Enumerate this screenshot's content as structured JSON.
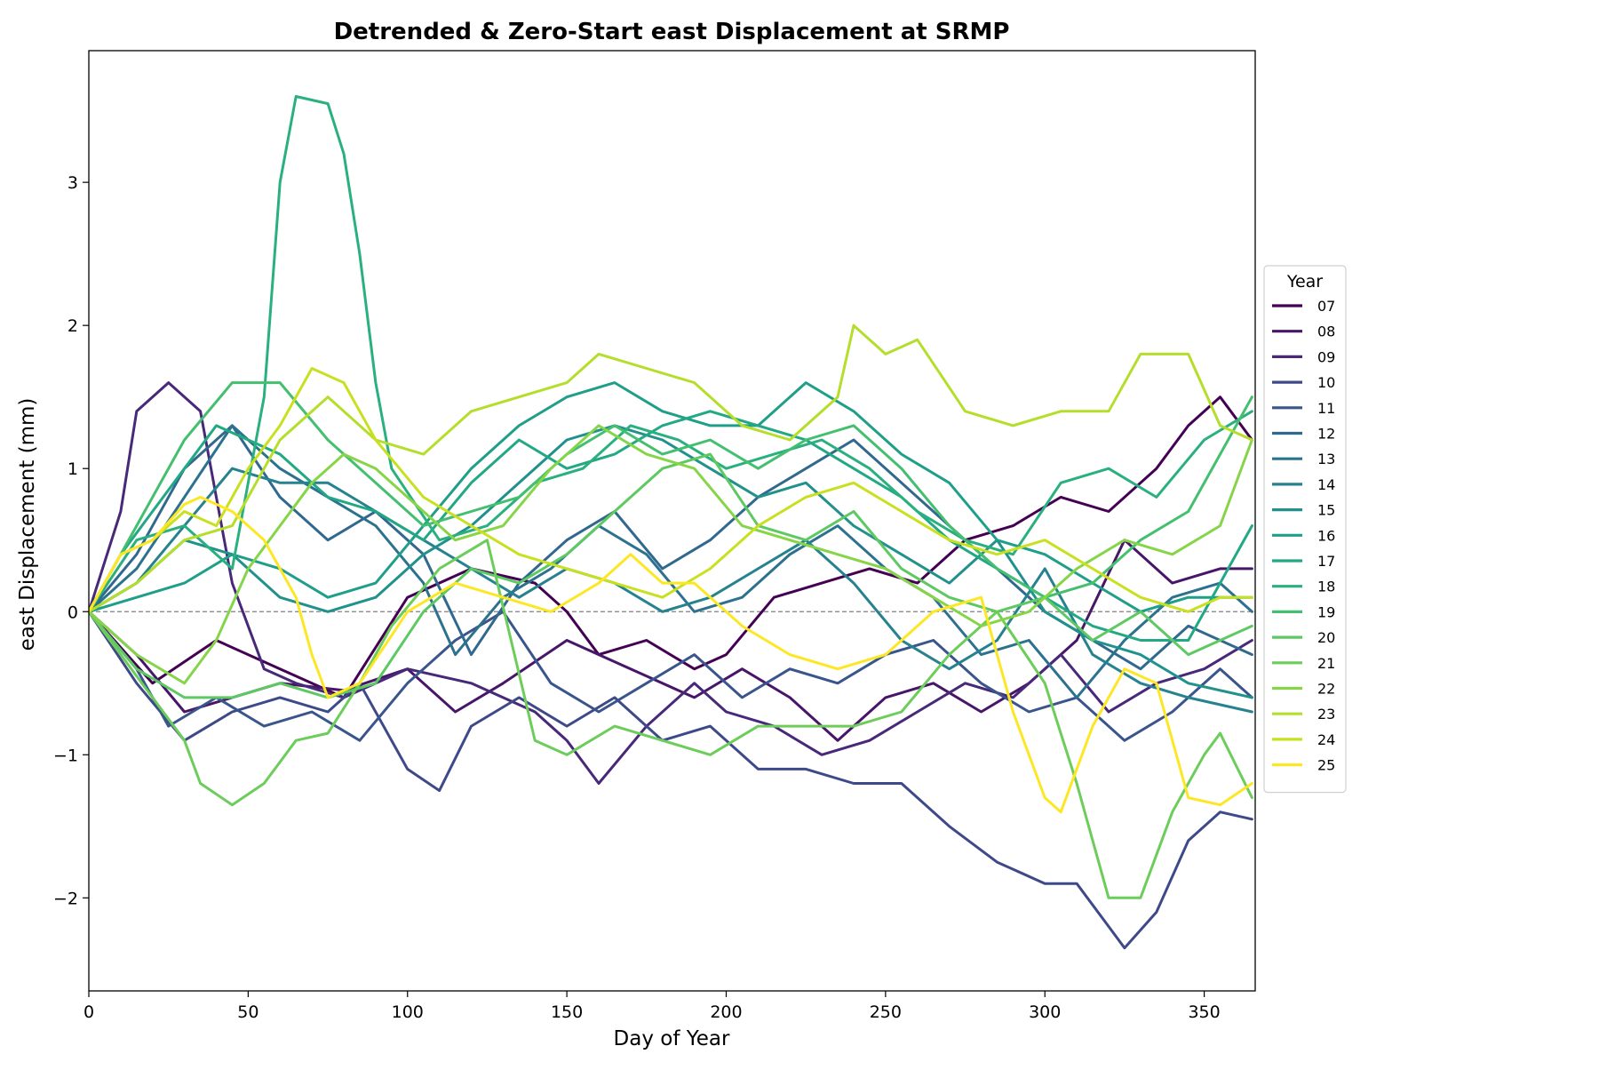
{
  "chart_data": {
    "type": "line",
    "title": "Detrended & Zero-Start east Displacement at SRMP",
    "xlabel": "Day of Year",
    "ylabel": "east Displacement (mm)",
    "xlim": [
      0,
      366
    ],
    "ylim": [
      -2.65,
      3.92
    ],
    "xticks": [
      0,
      50,
      100,
      150,
      200,
      250,
      300,
      350
    ],
    "yticks": [
      -2,
      -1,
      0,
      1,
      2,
      3
    ],
    "ytick_labels": [
      "−2",
      "−1",
      "0",
      "1",
      "2",
      "3"
    ],
    "zero_line": true,
    "grid": false,
    "legend": {
      "title": "Year",
      "placement": "center-right outside"
    },
    "series": [
      {
        "name": "07",
        "color": "#440154",
        "x": [
          0,
          20,
          40,
          60,
          80,
          100,
          120,
          140,
          150,
          160,
          175,
          190,
          200,
          215,
          230,
          245,
          260,
          275,
          290,
          305,
          320,
          335,
          345,
          355,
          365
        ],
        "y": [
          0,
          -0.5,
          -0.2,
          -0.4,
          -0.6,
          0.1,
          0.3,
          0.2,
          0.0,
          -0.3,
          -0.2,
          -0.4,
          -0.3,
          0.1,
          0.2,
          0.3,
          0.2,
          0.5,
          0.6,
          0.8,
          0.7,
          1.0,
          1.3,
          1.5,
          1.2
        ]
      },
      {
        "name": "08",
        "color": "#481668",
        "x": [
          0,
          15,
          30,
          45,
          60,
          80,
          100,
          115,
          130,
          150,
          170,
          190,
          205,
          220,
          235,
          250,
          265,
          280,
          295,
          310,
          325,
          340,
          355,
          365
        ],
        "y": [
          0,
          -0.3,
          -0.7,
          -0.6,
          -0.5,
          -0.55,
          -0.4,
          -0.7,
          -0.5,
          -0.2,
          -0.4,
          -0.6,
          -0.4,
          -0.6,
          -0.9,
          -0.6,
          -0.5,
          -0.7,
          -0.5,
          -0.2,
          0.5,
          0.2,
          0.3,
          0.3
        ]
      },
      {
        "name": "09",
        "color": "#482878",
        "x": [
          0,
          10,
          15,
          25,
          35,
          45,
          55,
          65,
          80,
          100,
          120,
          140,
          150,
          160,
          175,
          190,
          200,
          215,
          230,
          245,
          260,
          275,
          290,
          305,
          320,
          335,
          350,
          365
        ],
        "y": [
          0,
          0.7,
          1.4,
          1.6,
          1.4,
          0.2,
          -0.4,
          -0.5,
          -0.6,
          -0.4,
          -0.5,
          -0.7,
          -0.9,
          -1.2,
          -0.8,
          -0.5,
          -0.7,
          -0.8,
          -1.0,
          -0.9,
          -0.7,
          -0.5,
          -0.6,
          -0.3,
          -0.7,
          -0.5,
          -0.4,
          -0.2
        ]
      },
      {
        "name": "10",
        "color": "#3e4989",
        "x": [
          0,
          15,
          30,
          45,
          60,
          75,
          85,
          100,
          110,
          120,
          135,
          150,
          165,
          180,
          195,
          210,
          225,
          240,
          255,
          270,
          285,
          300,
          310,
          320,
          325,
          335,
          345,
          355,
          365
        ],
        "y": [
          0,
          -0.5,
          -0.9,
          -0.7,
          -0.6,
          -0.7,
          -0.5,
          -1.1,
          -1.25,
          -0.8,
          -0.6,
          -0.8,
          -0.6,
          -0.9,
          -0.8,
          -1.1,
          -1.1,
          -1.2,
          -1.2,
          -1.5,
          -1.75,
          -1.9,
          -1.9,
          -2.2,
          -2.35,
          -2.1,
          -1.6,
          -1.4,
          -1.45
        ]
      },
      {
        "name": "11",
        "color": "#3a548c",
        "x": [
          0,
          15,
          25,
          40,
          55,
          70,
          85,
          100,
          115,
          130,
          145,
          160,
          175,
          190,
          205,
          220,
          235,
          250,
          265,
          280,
          295,
          310,
          325,
          340,
          355,
          365
        ],
        "y": [
          0,
          -0.4,
          -0.8,
          -0.6,
          -0.8,
          -0.7,
          -0.9,
          -0.5,
          -0.2,
          0.0,
          -0.5,
          -0.7,
          -0.5,
          -0.3,
          -0.6,
          -0.4,
          -0.5,
          -0.3,
          -0.2,
          -0.5,
          -0.7,
          -0.6,
          -0.9,
          -0.7,
          -0.4,
          -0.6
        ]
      },
      {
        "name": "12",
        "color": "#31688e",
        "x": [
          0,
          15,
          30,
          45,
          60,
          75,
          90,
          105,
          120,
          135,
          150,
          165,
          180,
          195,
          210,
          225,
          240,
          255,
          270,
          285,
          300,
          315,
          330,
          345,
          365
        ],
        "y": [
          0,
          0.4,
          1.0,
          1.3,
          0.8,
          0.5,
          0.7,
          0.4,
          -0.3,
          0.2,
          0.5,
          0.7,
          0.3,
          0.5,
          0.8,
          1.0,
          1.2,
          0.9,
          0.6,
          0.3,
          0.0,
          -0.2,
          -0.4,
          -0.1,
          -0.3
        ]
      },
      {
        "name": "13",
        "color": "#2c728e",
        "x": [
          0,
          15,
          30,
          45,
          60,
          75,
          90,
          105,
          115,
          130,
          145,
          160,
          175,
          190,
          205,
          220,
          235,
          250,
          265,
          280,
          295,
          310,
          325,
          340,
          355,
          365
        ],
        "y": [
          0,
          0.3,
          0.8,
          1.3,
          1.0,
          0.8,
          0.6,
          0.2,
          -0.3,
          0.1,
          0.3,
          0.6,
          0.4,
          0.0,
          0.1,
          0.4,
          0.6,
          0.3,
          0.1,
          -0.3,
          -0.2,
          -0.6,
          -0.2,
          0.1,
          0.2,
          0.0
        ]
      },
      {
        "name": "14",
        "color": "#26828e",
        "x": [
          0,
          15,
          30,
          45,
          60,
          75,
          90,
          105,
          120,
          135,
          150,
          165,
          180,
          195,
          210,
          225,
          240,
          255,
          270,
          285,
          300,
          315,
          330,
          345,
          365
        ],
        "y": [
          0,
          0.2,
          0.6,
          1.0,
          0.9,
          0.9,
          0.7,
          0.5,
          0.3,
          0.1,
          0.3,
          0.2,
          0.0,
          0.1,
          0.3,
          0.5,
          0.2,
          -0.2,
          -0.4,
          -0.2,
          0.3,
          -0.3,
          -0.5,
          -0.6,
          -0.7
        ]
      },
      {
        "name": "15",
        "color": "#21918c",
        "x": [
          0,
          15,
          30,
          45,
          60,
          75,
          90,
          105,
          120,
          135,
          150,
          165,
          180,
          195,
          210,
          225,
          240,
          255,
          270,
          285,
          300,
          315,
          330,
          345,
          365
        ],
        "y": [
          0,
          0.2,
          0.5,
          0.4,
          0.1,
          0.0,
          0.1,
          0.4,
          0.6,
          0.9,
          1.2,
          1.3,
          1.2,
          1.0,
          0.8,
          0.9,
          0.6,
          0.4,
          0.2,
          0.5,
          0.0,
          -0.2,
          -0.3,
          -0.5,
          -0.6
        ]
      },
      {
        "name": "16",
        "color": "#1f9e89",
        "x": [
          0,
          15,
          30,
          45,
          60,
          75,
          90,
          105,
          120,
          135,
          150,
          165,
          180,
          195,
          210,
          225,
          240,
          255,
          270,
          285,
          300,
          315,
          330,
          345,
          365
        ],
        "y": [
          0,
          0.1,
          0.2,
          0.4,
          0.3,
          0.1,
          0.2,
          0.6,
          1.0,
          1.3,
          1.5,
          1.6,
          1.4,
          1.3,
          1.3,
          1.6,
          1.4,
          1.1,
          0.9,
          0.5,
          0.4,
          0.2,
          0.0,
          0.1,
          0.1
        ]
      },
      {
        "name": "17",
        "color": "#22a884",
        "x": [
          0,
          10,
          20,
          30,
          40,
          50,
          60,
          75,
          90,
          105,
          120,
          135,
          150,
          165,
          180,
          195,
          210,
          225,
          240,
          255,
          270,
          285,
          300,
          315,
          330,
          345,
          365
        ],
        "y": [
          0,
          0.4,
          0.7,
          1.0,
          1.3,
          1.2,
          1.1,
          0.8,
          0.7,
          0.5,
          0.9,
          1.2,
          1.0,
          1.1,
          1.3,
          1.4,
          1.3,
          1.2,
          1.0,
          0.8,
          0.5,
          0.3,
          0.1,
          -0.1,
          -0.2,
          -0.2,
          0.6
        ]
      },
      {
        "name": "18",
        "color": "#2ab07f",
        "x": [
          0,
          15,
          30,
          45,
          55,
          60,
          65,
          75,
          80,
          85,
          90,
          95,
          110,
          125,
          140,
          155,
          170,
          185,
          200,
          215,
          230,
          245,
          260,
          275,
          290,
          305,
          320,
          335,
          350,
          365
        ],
        "y": [
          0,
          0.5,
          0.6,
          0.3,
          1.5,
          3.0,
          3.6,
          3.55,
          3.2,
          2.5,
          1.6,
          1.0,
          0.5,
          0.6,
          0.9,
          1.0,
          1.3,
          1.2,
          1.0,
          1.1,
          1.2,
          1.0,
          0.7,
          0.5,
          0.4,
          0.9,
          1.0,
          0.8,
          1.2,
          1.4
        ]
      },
      {
        "name": "19",
        "color": "#44bf70",
        "x": [
          0,
          15,
          30,
          45,
          60,
          75,
          90,
          105,
          120,
          135,
          150,
          165,
          180,
          195,
          210,
          225,
          240,
          255,
          270,
          285,
          300,
          315,
          330,
          345,
          365
        ],
        "y": [
          0,
          0.6,
          1.2,
          1.6,
          1.6,
          1.2,
          0.9,
          0.6,
          0.7,
          0.8,
          1.1,
          1.3,
          1.1,
          1.2,
          1.0,
          1.2,
          1.3,
          1.0,
          0.6,
          0.3,
          0.1,
          0.2,
          0.5,
          0.7,
          1.5
        ]
      },
      {
        "name": "20",
        "color": "#5ec962",
        "x": [
          0,
          15,
          30,
          45,
          60,
          75,
          90,
          105,
          120,
          135,
          150,
          165,
          180,
          195,
          210,
          225,
          240,
          255,
          270,
          285,
          300,
          315,
          330,
          345,
          365
        ],
        "y": [
          0,
          -0.4,
          -0.6,
          -0.6,
          -0.5,
          -0.6,
          -0.5,
          0.0,
          0.3,
          0.2,
          0.4,
          0.7,
          1.0,
          1.1,
          0.6,
          0.5,
          0.7,
          0.3,
          0.1,
          0.0,
          0.1,
          -0.2,
          0.0,
          -0.3,
          -0.1
        ]
      },
      {
        "name": "21",
        "color": "#6ccd5a",
        "x": [
          0,
          10,
          20,
          30,
          35,
          45,
          55,
          65,
          75,
          85,
          95,
          110,
          125,
          140,
          150,
          165,
          180,
          195,
          210,
          225,
          240,
          255,
          270,
          285,
          300,
          310,
          320,
          330,
          340,
          350,
          355,
          365
        ],
        "y": [
          0,
          -0.3,
          -0.6,
          -0.9,
          -1.2,
          -1.35,
          -1.2,
          -0.9,
          -0.85,
          -0.5,
          -0.1,
          0.3,
          0.5,
          -0.9,
          -1.0,
          -0.8,
          -0.9,
          -1.0,
          -0.8,
          -0.8,
          -0.8,
          -0.7,
          -0.3,
          0.0,
          -0.5,
          -1.2,
          -2.0,
          -2.0,
          -1.4,
          -1.0,
          -0.85,
          -1.3
        ]
      },
      {
        "name": "22",
        "color": "#86d549",
        "x": [
          0,
          15,
          30,
          40,
          50,
          60,
          70,
          80,
          90,
          100,
          115,
          130,
          145,
          160,
          175,
          190,
          205,
          220,
          235,
          250,
          265,
          280,
          295,
          310,
          325,
          340,
          355,
          365
        ],
        "y": [
          0,
          -0.3,
          -0.5,
          -0.2,
          0.3,
          0.6,
          0.9,
          1.1,
          1.0,
          0.8,
          0.5,
          0.6,
          1.0,
          1.3,
          1.1,
          1.0,
          0.6,
          0.5,
          0.4,
          0.3,
          0.1,
          -0.1,
          0.0,
          0.3,
          0.5,
          0.4,
          0.6,
          1.2
        ]
      },
      {
        "name": "23",
        "color": "#b5de2b",
        "x": [
          0,
          15,
          30,
          45,
          60,
          75,
          90,
          105,
          120,
          135,
          150,
          160,
          175,
          190,
          205,
          220,
          235,
          240,
          250,
          260,
          275,
          290,
          305,
          320,
          330,
          345,
          355,
          365
        ],
        "y": [
          0,
          0.2,
          0.5,
          0.6,
          1.2,
          1.5,
          1.2,
          1.1,
          1.4,
          1.5,
          1.6,
          1.8,
          1.7,
          1.6,
          1.3,
          1.2,
          1.5,
          2.0,
          1.8,
          1.9,
          1.4,
          1.3,
          1.4,
          1.4,
          1.8,
          1.8,
          1.3,
          1.2
        ]
      },
      {
        "name": "24",
        "color": "#c9e020",
        "x": [
          0,
          10,
          20,
          30,
          40,
          50,
          60,
          70,
          80,
          90,
          105,
          120,
          135,
          150,
          165,
          180,
          195,
          210,
          225,
          240,
          255,
          270,
          285,
          300,
          315,
          330,
          345,
          355,
          365
        ],
        "y": [
          0,
          0.4,
          0.5,
          0.7,
          0.6,
          1.0,
          1.3,
          1.7,
          1.6,
          1.2,
          0.8,
          0.6,
          0.4,
          0.3,
          0.2,
          0.1,
          0.3,
          0.6,
          0.8,
          0.9,
          0.7,
          0.5,
          0.4,
          0.5,
          0.3,
          0.1,
          0.0,
          0.1,
          0.1
        ]
      },
      {
        "name": "25",
        "color": "#fde725",
        "x": [
          0,
          10,
          20,
          30,
          35,
          45,
          55,
          65,
          70,
          75,
          85,
          100,
          115,
          130,
          145,
          160,
          170,
          180,
          190,
          205,
          220,
          235,
          250,
          265,
          280,
          290,
          300,
          305,
          315,
          325,
          335,
          345,
          355,
          365
        ],
        "y": [
          0,
          0.4,
          0.5,
          0.75,
          0.8,
          0.7,
          0.5,
          0.1,
          -0.3,
          -0.6,
          -0.5,
          0.0,
          0.2,
          0.1,
          0.0,
          0.2,
          0.4,
          0.2,
          0.2,
          -0.1,
          -0.3,
          -0.4,
          -0.3,
          0.0,
          0.1,
          -0.7,
          -1.3,
          -1.4,
          -0.8,
          -0.4,
          -0.5,
          -1.3,
          -1.35,
          -1.2
        ]
      }
    ]
  }
}
